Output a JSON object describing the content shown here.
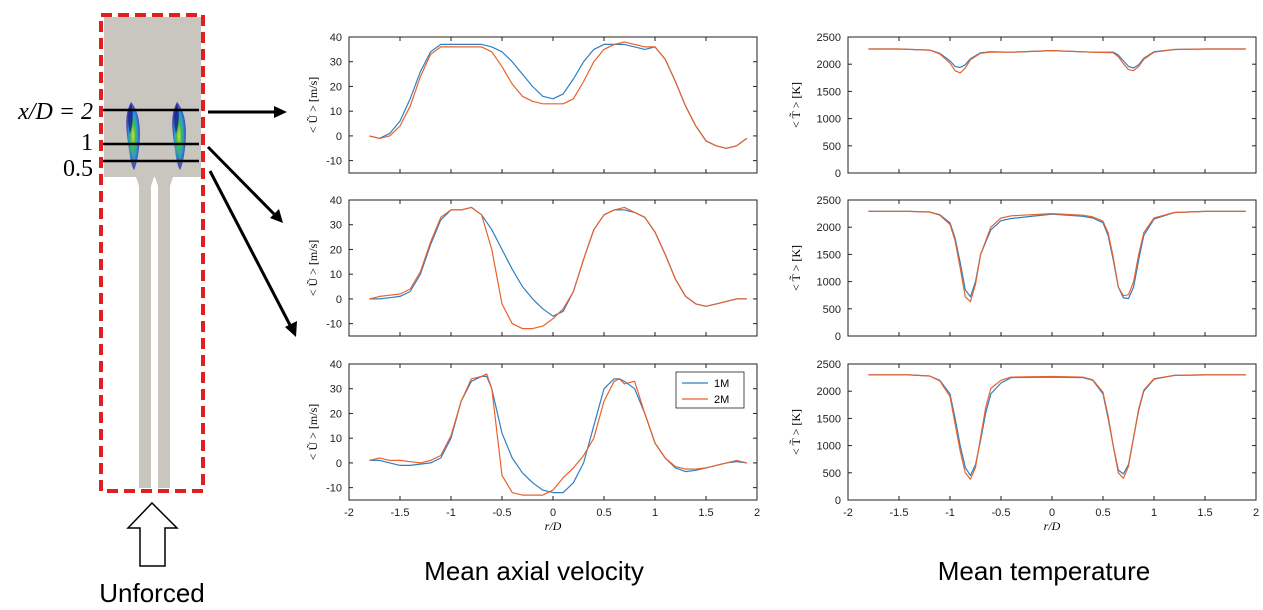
{
  "schematic": {
    "station_labels": [
      "x/D = 2",
      "1",
      "0.5"
    ],
    "caption": "Unforced"
  },
  "colors": {
    "series_1M": "#2f7fc1",
    "series_2M": "#e8622c",
    "domain_border": "#e02020",
    "chamber_fill": "#c9c6c0"
  },
  "captions": {
    "velocity": "Mean axial velocity",
    "temperature": "Mean temperature"
  },
  "chart_data": [
    {
      "type": "line",
      "id": "u_x2",
      "column": "velocity",
      "row": 0,
      "ylabel": "< Ũ > [m/s]",
      "xlabel": "",
      "xlim": [
        -2,
        2
      ],
      "ylim": [
        -15,
        40
      ],
      "yticks": [
        -10,
        0,
        10,
        20,
        30,
        40
      ],
      "xticks": [],
      "legend": null,
      "series": [
        {
          "name": "1M",
          "x": [
            -1.8,
            -1.7,
            -1.6,
            -1.5,
            -1.4,
            -1.3,
            -1.2,
            -1.1,
            -1.0,
            -0.9,
            -0.8,
            -0.7,
            -0.6,
            -0.5,
            -0.4,
            -0.3,
            -0.2,
            -0.1,
            0.0,
            0.1,
            0.2,
            0.3,
            0.4,
            0.5,
            0.6,
            0.7,
            0.8,
            0.9,
            1.0,
            1.1,
            1.2,
            1.3,
            1.4,
            1.5,
            1.6,
            1.7,
            1.8,
            1.9
          ],
          "y": [
            0,
            -1,
            1,
            6,
            15,
            26,
            34,
            37,
            37,
            37,
            37,
            37,
            36,
            34,
            30,
            25,
            20,
            16,
            15,
            17,
            23,
            30,
            35,
            37,
            37,
            37,
            36,
            35,
            36,
            31,
            22,
            12,
            4,
            -2,
            -4,
            -5,
            -4,
            -1
          ]
        },
        {
          "name": "2M",
          "x": [
            -1.8,
            -1.7,
            -1.6,
            -1.5,
            -1.4,
            -1.3,
            -1.2,
            -1.1,
            -1.0,
            -0.9,
            -0.8,
            -0.7,
            -0.6,
            -0.5,
            -0.4,
            -0.3,
            -0.2,
            -0.1,
            0.0,
            0.1,
            0.2,
            0.3,
            0.4,
            0.5,
            0.6,
            0.7,
            0.8,
            0.9,
            1.0,
            1.1,
            1.2,
            1.3,
            1.4,
            1.5,
            1.6,
            1.7,
            1.8,
            1.9
          ],
          "y": [
            0,
            -1,
            0,
            4,
            12,
            24,
            33,
            36,
            36,
            36,
            36,
            36,
            34,
            28,
            21,
            16,
            14,
            13,
            13,
            13,
            15,
            22,
            30,
            35,
            37,
            38,
            37,
            36,
            36,
            31,
            22,
            12,
            4,
            -2,
            -4,
            -5,
            -4,
            -1
          ]
        }
      ]
    },
    {
      "type": "line",
      "id": "t_x2",
      "column": "temperature",
      "row": 0,
      "ylabel": "< T̃ > [K]",
      "xlabel": "",
      "xlim": [
        -2,
        2
      ],
      "ylim": [
        0,
        2500
      ],
      "yticks": [
        0,
        500,
        1000,
        1500,
        2000,
        2500
      ],
      "xticks": [],
      "legend": null,
      "series": [
        {
          "name": "1M",
          "x": [
            -1.8,
            -1.5,
            -1.2,
            -1.1,
            -1.0,
            -0.95,
            -0.9,
            -0.85,
            -0.8,
            -0.7,
            -0.6,
            -0.4,
            0.0,
            0.4,
            0.6,
            0.65,
            0.7,
            0.75,
            0.8,
            0.85,
            0.9,
            1.0,
            1.2,
            1.5,
            1.9
          ],
          "y": [
            2280,
            2280,
            2260,
            2200,
            2060,
            1960,
            1940,
            1990,
            2100,
            2210,
            2230,
            2220,
            2250,
            2220,
            2220,
            2170,
            2060,
            1960,
            1930,
            1990,
            2110,
            2230,
            2270,
            2280,
            2280
          ]
        },
        {
          "name": "2M",
          "x": [
            -1.8,
            -1.5,
            -1.2,
            -1.1,
            -1.0,
            -0.95,
            -0.9,
            -0.85,
            -0.8,
            -0.7,
            -0.6,
            -0.4,
            0.0,
            0.4,
            0.6,
            0.65,
            0.7,
            0.75,
            0.8,
            0.85,
            0.9,
            1.0,
            1.2,
            1.5,
            1.9
          ],
          "y": [
            2280,
            2280,
            2260,
            2190,
            2020,
            1880,
            1840,
            1930,
            2080,
            2200,
            2220,
            2220,
            2250,
            2220,
            2210,
            2140,
            2010,
            1900,
            1880,
            1960,
            2090,
            2220,
            2270,
            2280,
            2280
          ]
        }
      ]
    },
    {
      "type": "line",
      "id": "u_x1",
      "column": "velocity",
      "row": 1,
      "ylabel": "< Ũ > [m/s]",
      "xlabel": "",
      "xlim": [
        -2,
        2
      ],
      "ylim": [
        -15,
        40
      ],
      "yticks": [
        -10,
        0,
        10,
        20,
        30,
        40
      ],
      "xticks": [],
      "legend": null,
      "series": [
        {
          "name": "1M",
          "x": [
            -1.8,
            -1.7,
            -1.6,
            -1.5,
            -1.4,
            -1.3,
            -1.2,
            -1.1,
            -1.0,
            -0.9,
            -0.8,
            -0.7,
            -0.6,
            -0.5,
            -0.4,
            -0.3,
            -0.2,
            -0.1,
            0.0,
            0.1,
            0.2,
            0.3,
            0.4,
            0.5,
            0.6,
            0.7,
            0.8,
            0.9,
            1.0,
            1.1,
            1.2,
            1.3,
            1.4,
            1.5,
            1.6,
            1.7,
            1.8,
            1.9
          ],
          "y": [
            0,
            0,
            0.5,
            1,
            3,
            10,
            22,
            32,
            36,
            36,
            37,
            34,
            28,
            20,
            12,
            5,
            0,
            -4,
            -7,
            -5,
            3,
            16,
            28,
            34,
            36,
            36,
            35,
            33,
            27,
            18,
            8,
            1,
            -2,
            -3,
            -2,
            -1,
            0,
            0
          ]
        },
        {
          "name": "2M",
          "x": [
            -1.8,
            -1.7,
            -1.6,
            -1.5,
            -1.4,
            -1.3,
            -1.2,
            -1.1,
            -1.0,
            -0.9,
            -0.8,
            -0.7,
            -0.6,
            -0.5,
            -0.4,
            -0.3,
            -0.2,
            -0.1,
            0.0,
            0.1,
            0.2,
            0.3,
            0.4,
            0.5,
            0.6,
            0.7,
            0.8,
            0.9,
            1.0,
            1.1,
            1.2,
            1.3,
            1.4,
            1.5,
            1.6,
            1.7,
            1.8,
            1.9
          ],
          "y": [
            0,
            1,
            1.5,
            2,
            4,
            11,
            23,
            33,
            36,
            36,
            37,
            34,
            20,
            -2,
            -10,
            -12,
            -12,
            -11,
            -8,
            -4,
            3,
            16,
            28,
            34,
            36,
            37,
            35,
            33,
            27,
            18,
            8,
            1,
            -2,
            -3,
            -2,
            -1,
            0,
            0
          ]
        }
      ]
    },
    {
      "type": "line",
      "id": "t_x1",
      "column": "temperature",
      "row": 1,
      "ylabel": "< T̃ > [K]",
      "xlabel": "",
      "xlim": [
        -2,
        2
      ],
      "ylim": [
        0,
        2500
      ],
      "yticks": [
        0,
        500,
        1000,
        1500,
        2000,
        2500
      ],
      "xticks": [],
      "legend": null,
      "series": [
        {
          "name": "1M",
          "x": [
            -1.8,
            -1.4,
            -1.2,
            -1.1,
            -1.0,
            -0.95,
            -0.9,
            -0.85,
            -0.8,
            -0.75,
            -0.7,
            -0.6,
            -0.5,
            -0.4,
            0.0,
            0.3,
            0.4,
            0.5,
            0.55,
            0.6,
            0.65,
            0.7,
            0.75,
            0.8,
            0.85,
            0.9,
            1.0,
            1.2,
            1.5,
            1.9
          ],
          "y": [
            2290,
            2290,
            2280,
            2230,
            2080,
            1800,
            1350,
            850,
            720,
            1000,
            1500,
            1950,
            2120,
            2160,
            2240,
            2200,
            2170,
            2080,
            1850,
            1400,
            900,
            700,
            690,
            900,
            1400,
            1850,
            2150,
            2270,
            2290,
            2290
          ]
        },
        {
          "name": "2M",
          "x": [
            -1.8,
            -1.4,
            -1.2,
            -1.1,
            -1.0,
            -0.95,
            -0.9,
            -0.85,
            -0.8,
            -0.75,
            -0.7,
            -0.6,
            -0.5,
            -0.4,
            0.0,
            0.3,
            0.4,
            0.5,
            0.55,
            0.6,
            0.65,
            0.7,
            0.75,
            0.8,
            0.85,
            0.9,
            1.0,
            1.2,
            1.5,
            1.9
          ],
          "y": [
            2290,
            2290,
            2280,
            2220,
            2050,
            1750,
            1250,
            720,
            630,
            950,
            1500,
            2000,
            2170,
            2210,
            2250,
            2220,
            2190,
            2110,
            1900,
            1450,
            900,
            740,
            760,
            1000,
            1500,
            1900,
            2170,
            2270,
            2290,
            2290
          ]
        }
      ]
    },
    {
      "type": "line",
      "id": "u_x05",
      "column": "velocity",
      "row": 2,
      "ylabel": "< Ũ > [m/s]",
      "xlabel": "r/D",
      "xlim": [
        -2,
        2
      ],
      "ylim": [
        -15,
        40
      ],
      "yticks": [
        -10,
        0,
        10,
        20,
        30,
        40
      ],
      "xticks": [
        -2,
        -1.5,
        -1,
        -0.5,
        0,
        0.5,
        1,
        1.5,
        2
      ],
      "legend": "top-right",
      "series": [
        {
          "name": "1M",
          "x": [
            -1.8,
            -1.7,
            -1.6,
            -1.5,
            -1.4,
            -1.3,
            -1.2,
            -1.1,
            -1.0,
            -0.9,
            -0.8,
            -0.7,
            -0.65,
            -0.6,
            -0.5,
            -0.4,
            -0.3,
            -0.2,
            -0.1,
            0.0,
            0.1,
            0.2,
            0.3,
            0.4,
            0.5,
            0.6,
            0.65,
            0.7,
            0.8,
            0.9,
            1.0,
            1.1,
            1.2,
            1.3,
            1.4,
            1.5,
            1.6,
            1.7,
            1.8,
            1.9
          ],
          "y": [
            1,
            1,
            0,
            -1,
            -1,
            -0.5,
            0,
            2,
            10,
            25,
            33,
            35,
            35,
            30,
            12,
            2,
            -4,
            -8,
            -11,
            -12,
            -12,
            -8,
            0,
            15,
            30,
            34,
            34,
            33,
            30,
            20,
            8,
            2,
            -2,
            -3.5,
            -3,
            -2,
            -1,
            0,
            0.5,
            0
          ]
        },
        {
          "name": "2M",
          "x": [
            -1.8,
            -1.7,
            -1.6,
            -1.5,
            -1.4,
            -1.3,
            -1.2,
            -1.1,
            -1.0,
            -0.9,
            -0.8,
            -0.7,
            -0.65,
            -0.6,
            -0.5,
            -0.4,
            -0.3,
            -0.2,
            -0.1,
            0.0,
            0.1,
            0.2,
            0.3,
            0.4,
            0.5,
            0.6,
            0.65,
            0.7,
            0.8,
            0.9,
            1.0,
            1.1,
            1.2,
            1.3,
            1.4,
            1.5,
            1.6,
            1.7,
            1.8,
            1.9
          ],
          "y": [
            1,
            2,
            1,
            1,
            0.5,
            0,
            1,
            3,
            11,
            25,
            34,
            35,
            36,
            30,
            -5,
            -12,
            -13,
            -13,
            -13,
            -11,
            -6,
            -2,
            3,
            10,
            25,
            33,
            34,
            32,
            33,
            20,
            8,
            2,
            -1.5,
            -2.5,
            -2.5,
            -2,
            -1,
            0,
            1,
            0
          ]
        }
      ]
    },
    {
      "type": "line",
      "id": "t_x05",
      "column": "temperature",
      "row": 2,
      "ylabel": "< T̃ > [K]",
      "xlabel": "r/D",
      "xlim": [
        -2,
        2
      ],
      "ylim": [
        0,
        2500
      ],
      "yticks": [
        0,
        500,
        1000,
        1500,
        2000,
        2500
      ],
      "xticks": [
        -2,
        -1.5,
        -1,
        -0.5,
        0,
        0.5,
        1,
        1.5,
        2
      ],
      "legend": null,
      "series": [
        {
          "name": "1M",
          "x": [
            -1.8,
            -1.4,
            -1.2,
            -1.1,
            -1.0,
            -0.95,
            -0.9,
            -0.85,
            -0.8,
            -0.75,
            -0.7,
            -0.65,
            -0.6,
            -0.5,
            -0.4,
            0.0,
            0.3,
            0.4,
            0.5,
            0.55,
            0.6,
            0.65,
            0.7,
            0.75,
            0.8,
            0.85,
            0.9,
            1.0,
            1.2,
            1.5,
            1.9
          ],
          "y": [
            2300,
            2300,
            2280,
            2200,
            1950,
            1500,
            1000,
            600,
            450,
            650,
            1100,
            1600,
            1950,
            2150,
            2250,
            2260,
            2250,
            2200,
            1950,
            1500,
            1000,
            550,
            480,
            650,
            1150,
            1650,
            2000,
            2220,
            2290,
            2300,
            2300
          ]
        },
        {
          "name": "2M",
          "x": [
            -1.8,
            -1.4,
            -1.2,
            -1.1,
            -1.0,
            -0.95,
            -0.9,
            -0.85,
            -0.8,
            -0.75,
            -0.7,
            -0.65,
            -0.6,
            -0.5,
            -0.4,
            0.0,
            0.3,
            0.4,
            0.5,
            0.55,
            0.6,
            0.65,
            0.7,
            0.75,
            0.8,
            0.85,
            0.9,
            1.0,
            1.2,
            1.5,
            1.9
          ],
          "y": [
            2300,
            2300,
            2280,
            2190,
            1900,
            1400,
            900,
            500,
            380,
            600,
            1150,
            1700,
            2050,
            2200,
            2260,
            2270,
            2260,
            2210,
            1980,
            1550,
            1000,
            500,
            400,
            620,
            1150,
            1680,
            2020,
            2230,
            2290,
            2300,
            2300
          ]
        }
      ]
    }
  ]
}
